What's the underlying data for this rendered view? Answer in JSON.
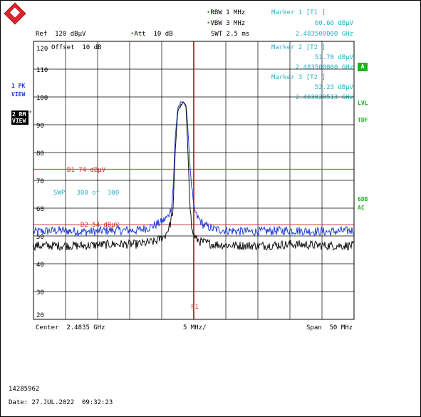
{
  "header": {
    "rbw": "RBW 1 MHz",
    "vbw": "VBW 3 MHz",
    "swt": "SWT 2.5 ms",
    "ref": "Ref  120 dBµV",
    "att": "Att  10 dB"
  },
  "markers": [
    {
      "title": "Marker 1 [T1 ]",
      "level": "60.66 dBµV",
      "freq": "2.483500000 GHz"
    },
    {
      "title": "Marker 2 [T2 ]",
      "level": "51.78 dBµV",
      "freq": "2.483500000 GHz"
    },
    {
      "title": "Marker 3 [T2 ]",
      "level": "52.23 dBµV",
      "freq": "2.403020513 GHz"
    }
  ],
  "left_side": {
    "trace1_label": "1 PK",
    "trace1_mode": "VIEW",
    "trace2_label": "2 RM",
    "trace2_mode": "VIEW"
  },
  "right_side": {
    "a_box": "A",
    "lvl": "LVL",
    "tdf": "TDF",
    "sgl": "6DB",
    "ac": "AC"
  },
  "grid": {
    "offset": "Offset  10 dB",
    "y_labels": [
      "120",
      "110",
      "100",
      "90",
      "80",
      "70",
      "60",
      "50",
      "40",
      "30",
      "20"
    ],
    "d1": "D1 74 dBµV",
    "d2": "D2 54 dBµV",
    "swp": "SWP   300 of  300",
    "f1": "F1"
  },
  "footer": {
    "center": "Center  2.4835 GHz",
    "div": "5 MHz/",
    "span": "Span  50 MHz",
    "id": "14285962",
    "date": "Date: 27.JUL.2022  09:32:23"
  },
  "colors": {
    "trace1": "#1d3fd6",
    "trace2": "#111111",
    "display_line": "#d03030",
    "marker_line": "#a01010",
    "annotation": "#2ab0c6"
  },
  "chart_data": {
    "type": "line",
    "title": "",
    "xlabel": "",
    "ylabel": "",
    "x_range_ghz": [
      2.4585,
      2.5085
    ],
    "ylim": [
      20,
      120
    ],
    "grid": true,
    "display_lines": [
      {
        "name": "D1",
        "value": 74
      },
      {
        "name": "D2",
        "value": 54
      }
    ],
    "frequency_line_ghz": 2.4835,
    "series": [
      {
        "name": "1 PK",
        "x": [
          2.4585,
          2.4625,
          2.4665,
          2.4705,
          2.4745,
          2.4765,
          2.4775,
          2.4785,
          2.4795,
          2.48,
          2.4803,
          2.4806,
          2.481,
          2.4815,
          2.482,
          2.4823,
          2.4826,
          2.483,
          2.4835,
          2.484,
          2.485,
          2.4865,
          2.4885,
          2.4925,
          2.4985,
          2.5045,
          2.5085
        ],
        "values": [
          51.5,
          52,
          51.5,
          52,
          52,
          53,
          54,
          55,
          57,
          60,
          68,
          85,
          96,
          98,
          98,
          97,
          88,
          72,
          60,
          57,
          54,
          52.5,
          52,
          51.5,
          52,
          51.5,
          52
        ]
      },
      {
        "name": "2 RM",
        "x": [
          2.4585,
          2.4625,
          2.4665,
          2.4705,
          2.4745,
          2.4775,
          2.479,
          2.4798,
          2.4803,
          2.4806,
          2.481,
          2.4815,
          2.482,
          2.4823,
          2.4826,
          2.4829,
          2.4832,
          2.4838,
          2.4845,
          2.4865,
          2.4905,
          2.4945,
          2.4985,
          2.5045,
          2.5085
        ],
        "values": [
          46.5,
          46.5,
          46.5,
          47,
          47,
          48,
          50,
          54,
          60,
          80,
          95,
          97,
          98,
          96,
          80,
          62,
          52,
          49,
          48,
          47,
          46.5,
          46.5,
          47,
          46.5,
          46.5
        ]
      }
    ]
  }
}
